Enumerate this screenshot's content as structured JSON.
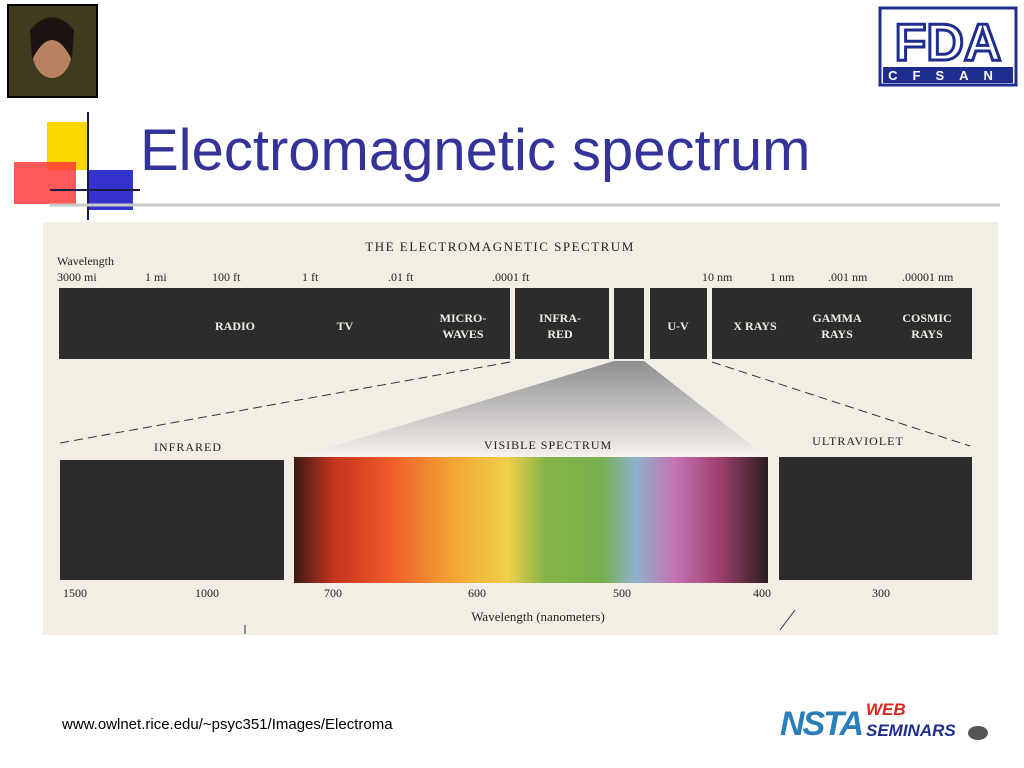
{
  "header": {
    "title": "Electromagnetic spectrum"
  },
  "logo": {
    "main": "FDA",
    "sub": "CFSAN"
  },
  "figure": {
    "heading": "THE ELECTROMAGNETIC SPECTRUM",
    "axis_label": "Wavelength",
    "scale": [
      "3000 mi",
      "1 mi",
      "100 ft",
      "1 ft",
      ".01 ft",
      ".0001 ft",
      "10 nm",
      "1 nm",
      ".001 nm",
      ".00001 nm"
    ],
    "bands": [
      {
        "lines": [
          "RADIO"
        ]
      },
      {
        "lines": [
          "TV"
        ]
      },
      {
        "lines": [
          "MICRO-",
          "WAVES"
        ]
      },
      {
        "lines": [
          "INFRA-",
          "RED"
        ]
      },
      {
        "lines": [
          "U-V"
        ]
      },
      {
        "lines": [
          "X RAYS"
        ]
      },
      {
        "lines": [
          "GAMMA",
          "RAYS"
        ]
      },
      {
        "lines": [
          "COSMIC",
          "RAYS"
        ]
      }
    ],
    "panels": [
      "INFRARED",
      "VISIBLE SPECTRUM",
      "ULTRAVIOLET"
    ],
    "nm_labels": [
      "1500",
      "1000",
      "700",
      "600",
      "500",
      "400",
      "300"
    ],
    "nm_axis_label": "Wavelength (nanometers)"
  },
  "footer": {
    "source": "www.owlnet.rice.edu/~psyc351/Images/Electroma",
    "logo": {
      "main": "NSTA",
      "line1": "WEB",
      "line2": "SEMINARS"
    }
  }
}
